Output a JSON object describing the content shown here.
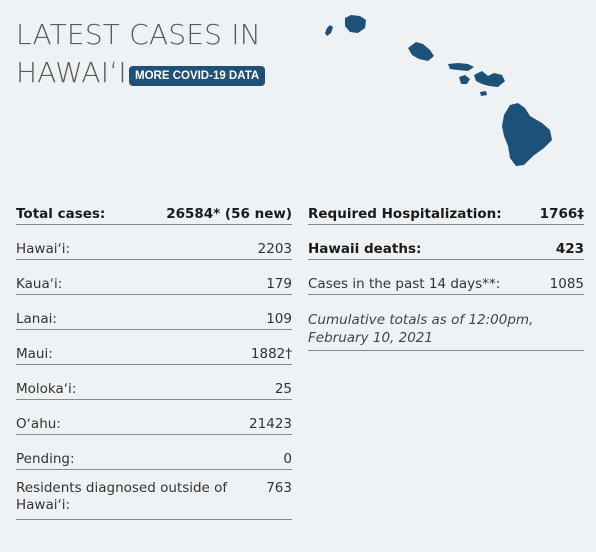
{
  "header": {
    "title_line1": "LATEST CASES IN",
    "title_line2": "HAWAIʻI",
    "badge_label": "MORE COVID-19 DATA"
  },
  "map": {
    "icon": "hawaii-islands-map-icon",
    "color": "#1d5177"
  },
  "left_table": {
    "rows": [
      {
        "label": "Total cases:",
        "value": "26584* (56 new)"
      },
      {
        "label": "Hawaiʻi:",
        "value": "2203"
      },
      {
        "label": "Kauaʻi:",
        "value": "179"
      },
      {
        "label": "Lanai:",
        "value": "109"
      },
      {
        "label": "Maui:",
        "value": "1882†"
      },
      {
        "label": "Molokaʻi:",
        "value": "25"
      },
      {
        "label": "Oʻahu:",
        "value": "21423"
      },
      {
        "label": "Pending:",
        "value": "0"
      },
      {
        "label": "Residents diagnosed outside of Hawaiʻi:",
        "value": "763"
      }
    ]
  },
  "right_table": {
    "rows": [
      {
        "label": "Required Hospitalization:",
        "value": "1766‡"
      },
      {
        "label": "Hawaii deaths:",
        "value": "423"
      },
      {
        "label": "Cases in the past 14 days**:",
        "value": "1085"
      }
    ],
    "note": "Cumulative totals as of 12:00pm, February 10, 2021"
  },
  "colors": {
    "background": "#eef2f5",
    "accent": "#1e5078",
    "title": "#5a5a5a"
  }
}
